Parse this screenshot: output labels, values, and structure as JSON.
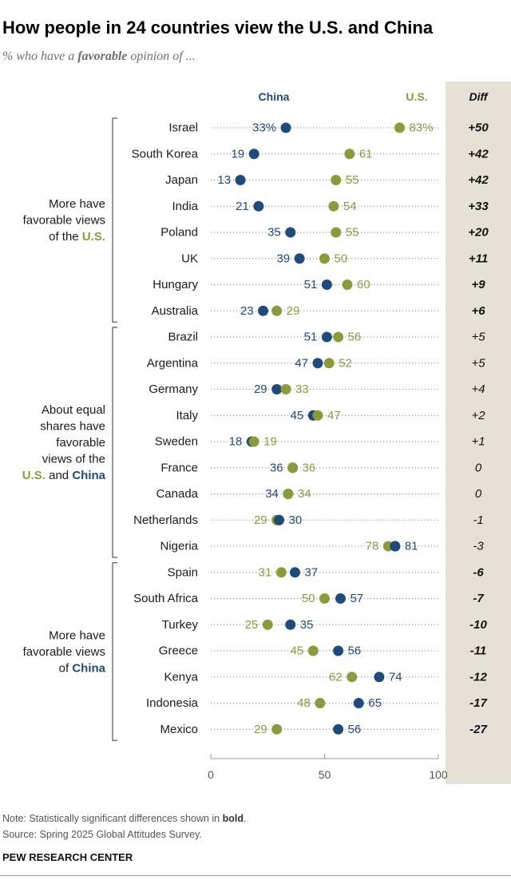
{
  "title": "How people in 24 countries view the U.S. and China",
  "subtitle": {
    "pre": "% who have a ",
    "bold": "favorable",
    "post": " opinion of ..."
  },
  "colors": {
    "china": "#1f4a7c",
    "us": "#8c9a3c",
    "diff_bg": "#e6e1d6",
    "dots": "#9a9a9a"
  },
  "chart_data": {
    "type": "dot",
    "series": [
      {
        "name": "China",
        "key": "china"
      },
      {
        "name": "U.S.",
        "key": "us"
      }
    ],
    "diff_header": "Diff",
    "xlim": [
      0,
      100
    ],
    "xticks": [
      0,
      50,
      100
    ],
    "groups": [
      {
        "label_lines": [
          {
            "text": "More have"
          },
          {
            "text": "favorable views"
          },
          {
            "text": "of the ",
            "bold": "U.S.",
            "bold_color": "us"
          }
        ],
        "start": 0,
        "end": 7
      },
      {
        "label_lines": [
          {
            "text": "About equal"
          },
          {
            "text": "shares have"
          },
          {
            "text": "favorable"
          },
          {
            "text": "views of the"
          },
          {
            "bold": "U.S.",
            "bold_color": "us",
            "text": " and ",
            "bold2": "China",
            "bold2_color": "china"
          }
        ],
        "start": 8,
        "end": 16
      },
      {
        "label_lines": [
          {
            "text": "More have"
          },
          {
            "text": "favorable views"
          },
          {
            "text": "of ",
            "bold": "China",
            "bold_color": "china"
          }
        ],
        "start": 17,
        "end": 23
      }
    ],
    "rows": [
      {
        "country": "Israel",
        "china": 33,
        "us": 83,
        "china_label": "33%",
        "us_label": "83%",
        "diff": "+50",
        "bold": true
      },
      {
        "country": "South Korea",
        "china": 19,
        "us": 61,
        "china_label": "19",
        "us_label": "61",
        "diff": "+42",
        "bold": true
      },
      {
        "country": "Japan",
        "china": 13,
        "us": 55,
        "china_label": "13",
        "us_label": "55",
        "diff": "+42",
        "bold": true
      },
      {
        "country": "India",
        "china": 21,
        "us": 54,
        "china_label": "21",
        "us_label": "54",
        "diff": "+33",
        "bold": true
      },
      {
        "country": "Poland",
        "china": 35,
        "us": 55,
        "china_label": "35",
        "us_label": "55",
        "diff": "+20",
        "bold": true
      },
      {
        "country": "UK",
        "china": 39,
        "us": 50,
        "china_label": "39",
        "us_label": "50",
        "diff": "+11",
        "bold": true
      },
      {
        "country": "Hungary",
        "china": 51,
        "us": 60,
        "china_label": "51",
        "us_label": "60",
        "diff": "+9",
        "bold": true
      },
      {
        "country": "Australia",
        "china": 23,
        "us": 29,
        "china_label": "23",
        "us_label": "29",
        "diff": "+6",
        "bold": true
      },
      {
        "country": "Brazil",
        "china": 51,
        "us": 56,
        "china_label": "51",
        "us_label": "56",
        "diff": "+5",
        "bold": false
      },
      {
        "country": "Argentina",
        "china": 47,
        "us": 52,
        "china_label": "47",
        "us_label": "52",
        "diff": "+5",
        "bold": false
      },
      {
        "country": "Germany",
        "china": 29,
        "us": 33,
        "china_label": "29",
        "us_label": "33",
        "diff": "+4",
        "bold": false
      },
      {
        "country": "Italy",
        "china": 45,
        "us": 47,
        "china_label": "45",
        "us_label": "47",
        "diff": "+2",
        "bold": false
      },
      {
        "country": "Sweden",
        "china": 18,
        "us": 19,
        "china_label": "18",
        "us_label": "19",
        "diff": "+1",
        "bold": false
      },
      {
        "country": "France",
        "china": 36,
        "us": 36,
        "china_label": "36",
        "us_label": "36",
        "diff": "0",
        "bold": false
      },
      {
        "country": "Canada",
        "china": 34,
        "us": 34,
        "china_label": "34",
        "us_label": "34",
        "diff": "0",
        "bold": false
      },
      {
        "country": "Netherlands",
        "china": 30,
        "us": 29,
        "china_label": "30",
        "us_label": "29",
        "diff": "-1",
        "bold": false
      },
      {
        "country": "Nigeria",
        "china": 81,
        "us": 78,
        "china_label": "81",
        "us_label": "78",
        "diff": "-3",
        "bold": false
      },
      {
        "country": "Spain",
        "china": 37,
        "us": 31,
        "china_label": "37",
        "us_label": "31",
        "diff": "-6",
        "bold": true
      },
      {
        "country": "South Africa",
        "china": 57,
        "us": 50,
        "china_label": "57",
        "us_label": "50",
        "diff": "-7",
        "bold": true
      },
      {
        "country": "Turkey",
        "china": 35,
        "us": 25,
        "china_label": "35",
        "us_label": "25",
        "diff": "-10",
        "bold": true
      },
      {
        "country": "Greece",
        "china": 56,
        "us": 45,
        "china_label": "56",
        "us_label": "45",
        "diff": "-11",
        "bold": true
      },
      {
        "country": "Kenya",
        "china": 74,
        "us": 62,
        "china_label": "74",
        "us_label": "62",
        "diff": "-12",
        "bold": true
      },
      {
        "country": "Indonesia",
        "china": 65,
        "us": 48,
        "china_label": "65",
        "us_label": "48",
        "diff": "-17",
        "bold": true
      },
      {
        "country": "Mexico",
        "china": 56,
        "us": 29,
        "china_label": "56",
        "us_label": "29",
        "diff": "-27",
        "bold": true
      }
    ]
  },
  "note": {
    "pre": "Note: Statistically significant differences shown in ",
    "bold": "bold",
    "post": "."
  },
  "source": "Source: Spring 2025 Global Attitudes Survey.",
  "footer": "PEW RESEARCH CENTER"
}
